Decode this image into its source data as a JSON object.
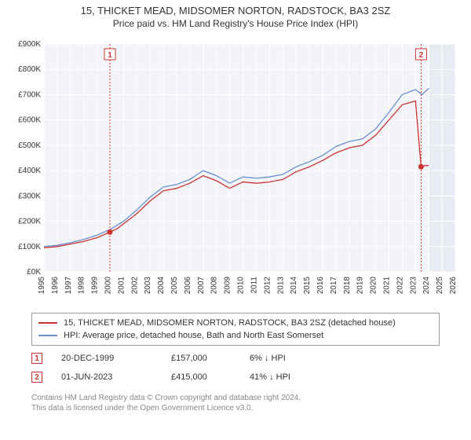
{
  "title": {
    "line1": "15, THICKET MEAD, MIDSOMER NORTON, RADSTOCK, BA3 2SZ",
    "line2": "Price paid vs. HM Land Registry's House Price Index (HPI)"
  },
  "chart": {
    "type": "line",
    "background_color": "#f2f4f8",
    "future_background_color": "#e8ebf1",
    "grid_color": "#ffffff",
    "x_start_year": 1995,
    "x_end_year": 2026,
    "future_start_year": 2024,
    "ylim": [
      0,
      900
    ],
    "ytick_step": 100,
    "y_prefix": "£",
    "y_suffix": "K",
    "series": [
      {
        "name": "price_paid",
        "label": "15, THICKET MEAD, MIDSOMER NORTON, RADSTOCK, BA3 2SZ (detached house)",
        "color": "#cc3333",
        "line_width": 1.3,
        "points": [
          [
            1995,
            95
          ],
          [
            1996,
            100
          ],
          [
            1997,
            110
          ],
          [
            1998,
            120
          ],
          [
            1999,
            135
          ],
          [
            1999.97,
            157
          ],
          [
            2000.5,
            170
          ],
          [
            2001,
            190
          ],
          [
            2002,
            230
          ],
          [
            2003,
            280
          ],
          [
            2004,
            320
          ],
          [
            2005,
            330
          ],
          [
            2006,
            350
          ],
          [
            2007,
            380
          ],
          [
            2008,
            360
          ],
          [
            2009,
            330
          ],
          [
            2010,
            355
          ],
          [
            2011,
            350
          ],
          [
            2012,
            355
          ],
          [
            2013,
            365
          ],
          [
            2014,
            395
          ],
          [
            2015,
            415
          ],
          [
            2016,
            440
          ],
          [
            2017,
            470
          ],
          [
            2018,
            490
          ],
          [
            2019,
            500
          ],
          [
            2020,
            540
          ],
          [
            2021,
            600
          ],
          [
            2022,
            660
          ],
          [
            2023,
            675
          ],
          [
            2023.42,
            415
          ],
          [
            2023.7,
            420
          ],
          [
            2024,
            420
          ]
        ]
      },
      {
        "name": "hpi",
        "label": "HPI: Average price, detached house, Bath and North East Somerset",
        "color": "#6a8fd1",
        "line_width": 1.3,
        "points": [
          [
            1995,
            100
          ],
          [
            1996,
            105
          ],
          [
            1997,
            115
          ],
          [
            1998,
            128
          ],
          [
            1999,
            145
          ],
          [
            2000,
            168
          ],
          [
            2001,
            200
          ],
          [
            2002,
            245
          ],
          [
            2003,
            295
          ],
          [
            2004,
            335
          ],
          [
            2005,
            345
          ],
          [
            2006,
            365
          ],
          [
            2007,
            400
          ],
          [
            2008,
            380
          ],
          [
            2009,
            350
          ],
          [
            2010,
            375
          ],
          [
            2011,
            370
          ],
          [
            2012,
            375
          ],
          [
            2013,
            385
          ],
          [
            2014,
            415
          ],
          [
            2015,
            435
          ],
          [
            2016,
            460
          ],
          [
            2017,
            495
          ],
          [
            2018,
            515
          ],
          [
            2019,
            525
          ],
          [
            2020,
            565
          ],
          [
            2021,
            630
          ],
          [
            2022,
            700
          ],
          [
            2023,
            720
          ],
          [
            2023.5,
            700
          ],
          [
            2024,
            725
          ]
        ]
      }
    ],
    "markers": [
      {
        "id": "1",
        "year": 1999.97,
        "value": 157
      },
      {
        "id": "2",
        "year": 2023.42,
        "value": 415
      }
    ],
    "sale_dots": [
      {
        "year": 1999.97,
        "value": 157
      },
      {
        "year": 2023.42,
        "value": 415
      }
    ]
  },
  "legend": {
    "rows": [
      {
        "color": "#cc3333",
        "label": "15, THICKET MEAD, MIDSOMER NORTON, RADSTOCK, BA3 2SZ (detached house)"
      },
      {
        "color": "#6a8fd1",
        "label": "HPI: Average price, detached house, Bath and North East Somerset"
      }
    ]
  },
  "info": {
    "rows": [
      {
        "id": "1",
        "date": "20-DEC-1999",
        "price": "£157,000",
        "pct": "6%",
        "arrow": "↓",
        "suffix": "HPI"
      },
      {
        "id": "2",
        "date": "01-JUN-2023",
        "price": "£415,000",
        "pct": "41%",
        "arrow": "↓",
        "suffix": "HPI"
      }
    ]
  },
  "footer": {
    "line1": "Contains HM Land Registry data © Crown copyright and database right 2024.",
    "line2": "This data is licensed under the Open Government Licence v3.0."
  }
}
